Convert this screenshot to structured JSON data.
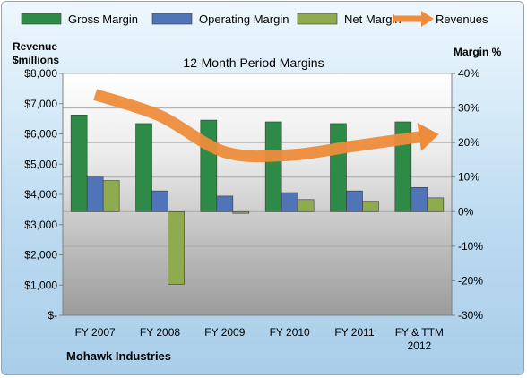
{
  "chart_data": {
    "type": "bar",
    "title": "12-Month Period Margins",
    "company": "Mohawk Industries",
    "left_axis_label": [
      "Revenue",
      "$millions"
    ],
    "right_axis_label": "Margin %",
    "categories": [
      "FY 2007",
      "FY 2008",
      "FY 2009",
      "FY 2010",
      "FY 2011",
      "FY & TTM 2012"
    ],
    "y_left": {
      "min": 0,
      "max": 8000,
      "ticks": [
        "$-",
        "$1,000",
        "$2,000",
        "$3,000",
        "$4,000",
        "$5,000",
        "$6,000",
        "$7,000",
        "$8,000"
      ]
    },
    "y_right": {
      "min": -30,
      "max": 40,
      "ticks": [
        "-30%",
        "-20%",
        "-10%",
        "0%",
        "10%",
        "20%",
        "30%",
        "40%"
      ]
    },
    "grid": true,
    "legend_position": "top",
    "series": [
      {
        "name": "Gross Margin",
        "kind": "bar",
        "axis": "right",
        "color": "#2e8b47",
        "values": [
          28,
          25.5,
          26.5,
          26,
          25.5,
          26
        ]
      },
      {
        "name": "Operating Margin",
        "kind": "bar",
        "axis": "right",
        "color": "#4f74b8",
        "values": [
          10,
          6,
          4.5,
          5.5,
          6,
          7
        ]
      },
      {
        "name": "Net Margin",
        "kind": "bar",
        "axis": "right",
        "color": "#8faa4f",
        "values": [
          9,
          -21,
          -0.5,
          3.5,
          3,
          4
        ]
      },
      {
        "name": "Revenues",
        "kind": "line",
        "axis": "left",
        "color": "#ed8c3b",
        "values": [
          7300,
          6600,
          5400,
          5300,
          5600,
          5900
        ]
      }
    ]
  }
}
